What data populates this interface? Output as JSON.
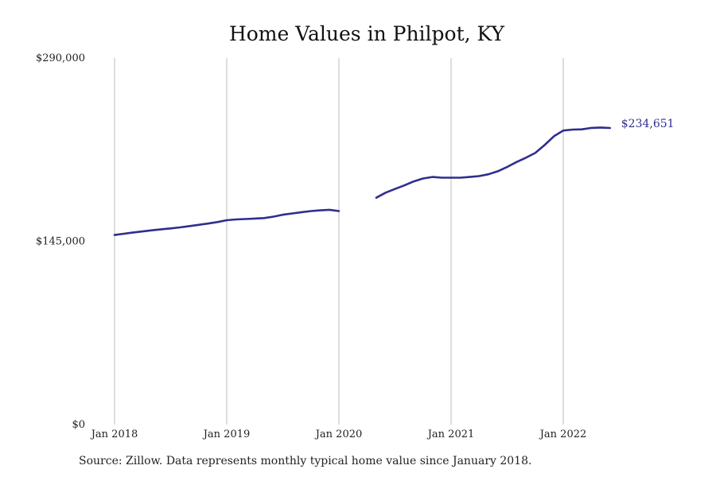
{
  "chart_data": {
    "type": "line",
    "title": "Home Values in Philpot, KY",
    "xlabel": "",
    "ylabel": "",
    "ylim": [
      0,
      290000
    ],
    "y_ticks": [
      {
        "value": 0,
        "label": "$0"
      },
      {
        "value": 145000,
        "label": "$145,000"
      },
      {
        "value": 290000,
        "label": "$290,000"
      }
    ],
    "x_ticks": [
      {
        "value": "2018-01",
        "label": "Jan 2018"
      },
      {
        "value": "2019-01",
        "label": "Jan 2019"
      },
      {
        "value": "2020-01",
        "label": "Jan 2020"
      },
      {
        "value": "2021-01",
        "label": "Jan 2021"
      },
      {
        "value": "2022-01",
        "label": "Jan 2022"
      }
    ],
    "grid": "vertical",
    "series": [
      {
        "color": "#2e2e8f",
        "end_label": "$234,651",
        "points": [
          {
            "x": "2018-01",
            "y": 150000
          },
          {
            "x": "2018-02",
            "y": 151000
          },
          {
            "x": "2018-03",
            "y": 152000
          },
          {
            "x": "2018-04",
            "y": 152800
          },
          {
            "x": "2018-05",
            "y": 153700
          },
          {
            "x": "2018-06",
            "y": 154500
          },
          {
            "x": "2018-07",
            "y": 155200
          },
          {
            "x": "2018-08",
            "y": 156000
          },
          {
            "x": "2018-09",
            "y": 157000
          },
          {
            "x": "2018-10",
            "y": 158000
          },
          {
            "x": "2018-11",
            "y": 159000
          },
          {
            "x": "2018-12",
            "y": 160200
          },
          {
            "x": "2019-01",
            "y": 161700
          },
          {
            "x": "2019-02",
            "y": 162300
          },
          {
            "x": "2019-03",
            "y": 162600
          },
          {
            "x": "2019-04",
            "y": 163000
          },
          {
            "x": "2019-05",
            "y": 163400
          },
          {
            "x": "2019-06",
            "y": 164500
          },
          {
            "x": "2019-07",
            "y": 166000
          },
          {
            "x": "2019-08",
            "y": 167000
          },
          {
            "x": "2019-09",
            "y": 168000
          },
          {
            "x": "2019-10",
            "y": 168900
          },
          {
            "x": "2019-11",
            "y": 169500
          },
          {
            "x": "2019-12",
            "y": 169900
          },
          {
            "x": "2020-01",
            "y": 168900
          },
          {
            "x": "2020-02",
            "y": null
          },
          {
            "x": "2020-03",
            "y": null
          },
          {
            "x": "2020-04",
            "y": null
          },
          {
            "x": "2020-05",
            "y": 179500
          },
          {
            "x": "2020-06",
            "y": 183500
          },
          {
            "x": "2020-07",
            "y": 186400
          },
          {
            "x": "2020-08",
            "y": 189200
          },
          {
            "x": "2020-09",
            "y": 192400
          },
          {
            "x": "2020-10",
            "y": 194700
          },
          {
            "x": "2020-11",
            "y": 195900
          },
          {
            "x": "2020-12",
            "y": 195300
          },
          {
            "x": "2021-01",
            "y": 195300
          },
          {
            "x": "2021-02",
            "y": 195300
          },
          {
            "x": "2021-03",
            "y": 195900
          },
          {
            "x": "2021-04",
            "y": 196600
          },
          {
            "x": "2021-05",
            "y": 198000
          },
          {
            "x": "2021-06",
            "y": 200400
          },
          {
            "x": "2021-07",
            "y": 203800
          },
          {
            "x": "2021-08",
            "y": 207700
          },
          {
            "x": "2021-09",
            "y": 211100
          },
          {
            "x": "2021-10",
            "y": 214900
          },
          {
            "x": "2021-11",
            "y": 221100
          },
          {
            "x": "2021-12",
            "y": 228100
          },
          {
            "x": "2022-01",
            "y": 232600
          },
          {
            "x": "2022-02",
            "y": 233400
          },
          {
            "x": "2022-03",
            "y": 233600
          },
          {
            "x": "2022-04",
            "y": 234700
          },
          {
            "x": "2022-05",
            "y": 235000
          },
          {
            "x": "2022-06",
            "y": 234651
          }
        ]
      }
    ],
    "source_note": "Source: Zillow. Data represents monthly typical home value since January 2018."
  }
}
